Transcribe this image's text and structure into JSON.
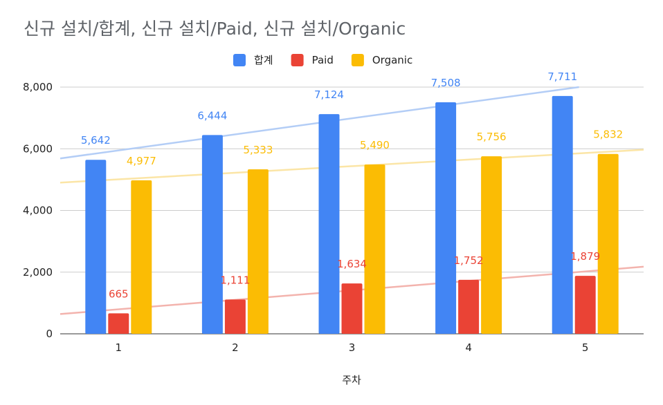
{
  "chart_data": {
    "type": "bar",
    "title": "신규 설치/합계, 신규 설치/Paid, 신규 설치/Organic",
    "xlabel": "주차",
    "ylabel": "",
    "categories": [
      "1",
      "2",
      "3",
      "4",
      "5"
    ],
    "series": [
      {
        "name": "합계",
        "color": "#4285f4",
        "trendline_color": "#b3cdf6",
        "values": [
          5642,
          6444,
          7124,
          7508,
          7711
        ],
        "labels": [
          "5,642",
          "6,444",
          "7,124",
          "7,508",
          "7,711"
        ]
      },
      {
        "name": "Paid",
        "color": "#ea4335",
        "trendline_color": "#f3b3ad",
        "values": [
          665,
          1111,
          1634,
          1752,
          1879
        ],
        "labels": [
          "665",
          "1,111",
          "1,634",
          "1,752",
          "1,879"
        ]
      },
      {
        "name": "Organic",
        "color": "#fbbc04",
        "trendline_color": "#fbe5a6",
        "values": [
          4977,
          5333,
          5490,
          5756,
          5832
        ],
        "labels": [
          "4,977",
          "5,333",
          "5,490",
          "5,756",
          "5,832"
        ]
      }
    ],
    "ylim": [
      0,
      8000
    ],
    "yticks": [
      0,
      2000,
      4000,
      6000,
      8000
    ],
    "ytick_labels": [
      "0",
      "2,000",
      "4,000",
      "6,000",
      "8,000"
    ],
    "grid": true,
    "trendlines": true,
    "legend_position": "top"
  }
}
